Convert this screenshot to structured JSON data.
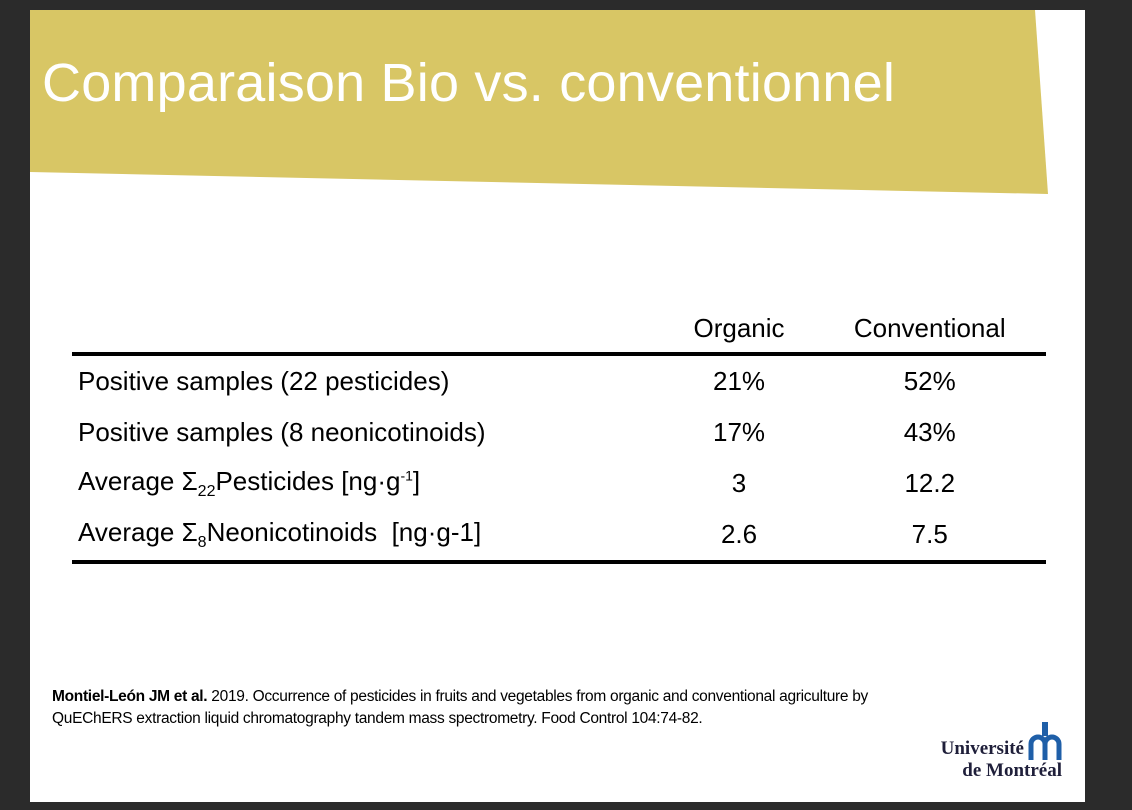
{
  "slide": {
    "title": "Comparaison Bio vs. conventionnel",
    "banner_color": "#d8c665"
  },
  "table": {
    "headers": [
      "",
      "Organic",
      "Conventional"
    ],
    "rows": [
      {
        "label_main": "Positive samples (22 pesticides)",
        "label_sub": "",
        "label_rest": "",
        "label_sup": "",
        "label_end": "",
        "organic": "21%",
        "conventional": "52%"
      },
      {
        "label_main": "Positive samples (8 neonicotinoids)",
        "label_sub": "",
        "label_rest": "",
        "label_sup": "",
        "label_end": "",
        "organic": "17%",
        "conventional": "43%"
      },
      {
        "label_main": "Average Σ",
        "label_sub": "22",
        "label_rest": "Pesticides [ng·g",
        "label_sup": "-1",
        "label_end": "]",
        "organic": "3",
        "conventional": "12.2"
      },
      {
        "label_main": "Average Σ",
        "label_sub": "8",
        "label_rest": "Neonicotinoids  [ng·g-1]",
        "label_sup": "",
        "label_end": "",
        "organic": "2.6",
        "conventional": "7.5"
      }
    ]
  },
  "citation": {
    "authors": "Montiel-León JM et al.",
    "text": " 2019. Occurrence of pesticides in fruits and vegetables from organic and conventional agriculture by QuEChERS extraction liquid chromatography tandem mass spectrometry. Food Control 104:74-82."
  },
  "logo": {
    "line1": "Université",
    "line2": "de Montréal",
    "mark_color": "#1f5fa8"
  }
}
